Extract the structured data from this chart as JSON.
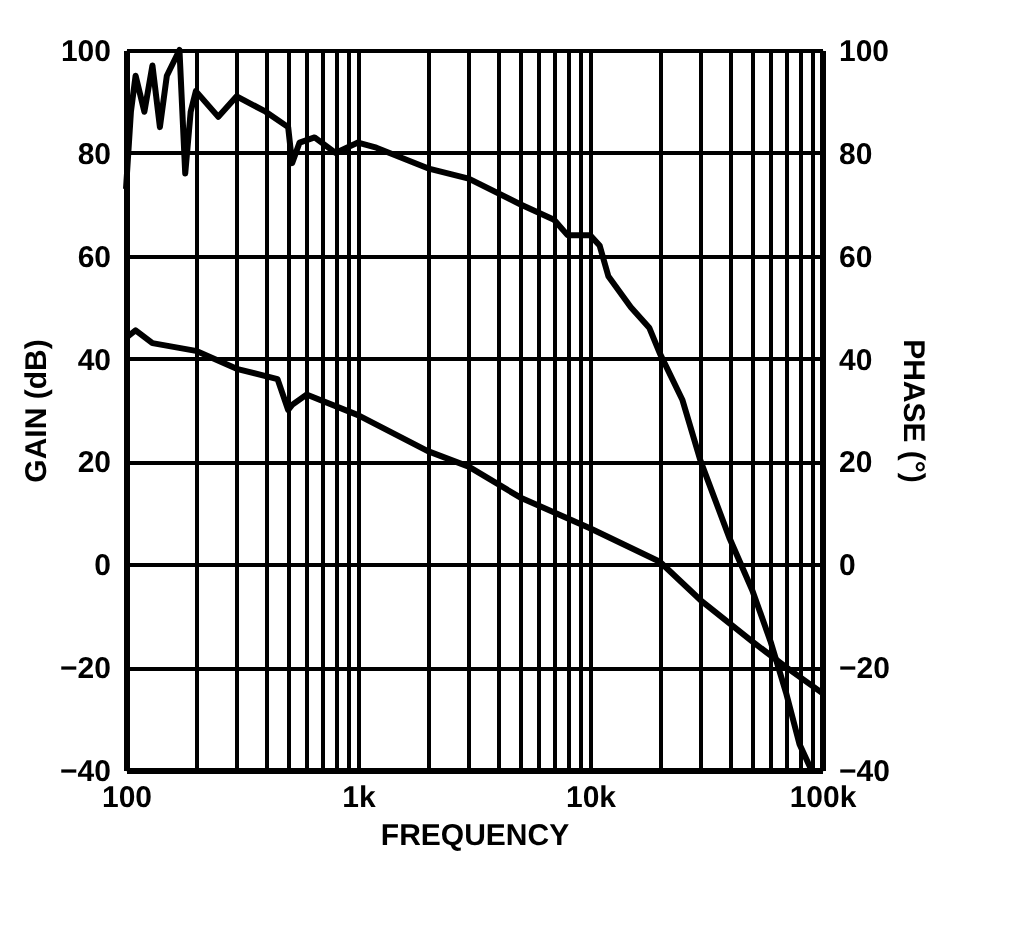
{
  "chart_data": {
    "type": "line",
    "xlabel": "FREQUENCY",
    "ylabel": "GAIN (dB)",
    "y2label": "PHASE (°)",
    "log": "x",
    "grid": true,
    "line_style": "solid",
    "marker": "none",
    "xlim": [
      100,
      100000
    ],
    "ylim": [
      -40,
      100
    ],
    "y2lim": [
      -40,
      100
    ],
    "xticks": [
      {
        "value": 100,
        "label": "100"
      },
      {
        "value": 200,
        "label": null
      },
      {
        "value": 300,
        "label": null
      },
      {
        "value": 400,
        "label": null
      },
      {
        "value": 500,
        "label": null
      },
      {
        "value": 600,
        "label": null
      },
      {
        "value": 700,
        "label": null
      },
      {
        "value": 800,
        "label": null
      },
      {
        "value": 900,
        "label": null
      },
      {
        "value": 1000,
        "label": "1k"
      },
      {
        "value": 2000,
        "label": null
      },
      {
        "value": 3000,
        "label": null
      },
      {
        "value": 4000,
        "label": null
      },
      {
        "value": 5000,
        "label": null
      },
      {
        "value": 6000,
        "label": null
      },
      {
        "value": 7000,
        "label": null
      },
      {
        "value": 8000,
        "label": null
      },
      {
        "value": 9000,
        "label": null
      },
      {
        "value": 10000,
        "label": "10k"
      },
      {
        "value": 20000,
        "label": null
      },
      {
        "value": 30000,
        "label": null
      },
      {
        "value": 40000,
        "label": null
      },
      {
        "value": 50000,
        "label": null
      },
      {
        "value": 60000,
        "label": null
      },
      {
        "value": 70000,
        "label": null
      },
      {
        "value": 80000,
        "label": null
      },
      {
        "value": 90000,
        "label": null
      },
      {
        "value": 100000,
        "label": "100k"
      }
    ],
    "yticks": [
      -40,
      -20,
      0,
      20,
      40,
      60,
      80,
      100
    ],
    "y2ticks": [
      -40,
      -20,
      0,
      20,
      40,
      60,
      80,
      100
    ],
    "series": [
      {
        "color": "#000000",
        "x": [
          100,
          110,
          130,
          200,
          300,
          450,
          500,
          520,
          600,
          1000,
          2000,
          3000,
          5000,
          10000,
          20000,
          30000,
          50000,
          70000,
          100000
        ],
        "values": [
          44,
          45.5,
          43,
          41.5,
          38,
          36,
          30,
          31,
          33,
          29,
          22,
          19,
          13,
          7,
          0.5,
          -7,
          -15,
          -20,
          -25
        ]
      },
      {
        "color": "#000000",
        "axis": "y2",
        "x": [
          100,
          105,
          110,
          120,
          130,
          140,
          150,
          170,
          180,
          190,
          200,
          250,
          300,
          400,
          500,
          520,
          560,
          650,
          800,
          1000,
          1200,
          2000,
          3000,
          5000,
          7000,
          8000,
          10000,
          11000,
          12000,
          15000,
          18000,
          20000,
          25000,
          30000,
          40000,
          50000,
          60000,
          70000,
          80000,
          90000
        ],
        "values": [
          73,
          88,
          95,
          88,
          97,
          85,
          95,
          100,
          76,
          88,
          92,
          87,
          91,
          88,
          85,
          78,
          82,
          83,
          80,
          82,
          81,
          77,
          75,
          70,
          67,
          64,
          64,
          62,
          56,
          50,
          46,
          41,
          32,
          20,
          5,
          -5,
          -15,
          -25,
          -35,
          -40
        ]
      }
    ]
  }
}
